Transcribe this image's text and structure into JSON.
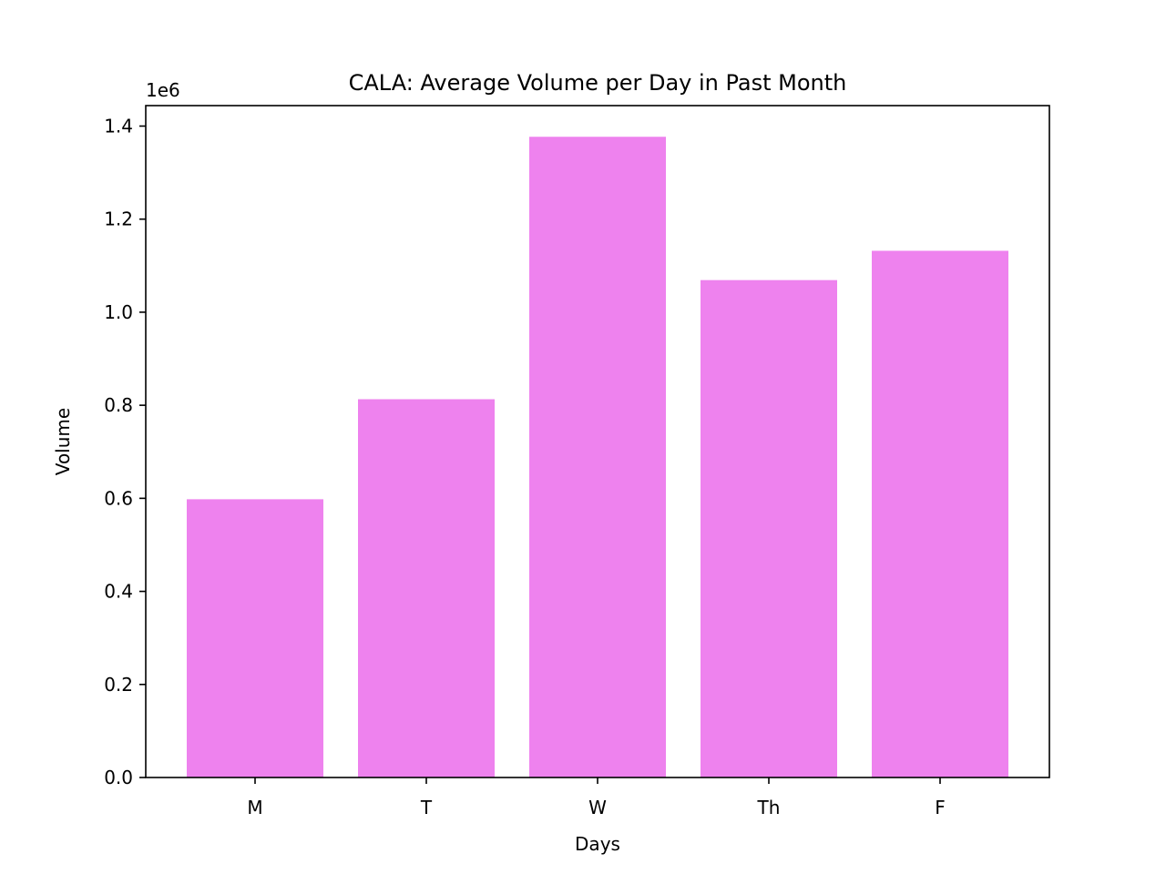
{
  "chart_data": {
    "type": "bar",
    "title": "CALA: Average Volume per Day in Past Month",
    "xlabel": "Days",
    "ylabel": "Volume",
    "offset_label": "1e6",
    "categories": [
      "M",
      "T",
      "W",
      "Th",
      "F"
    ],
    "values": [
      598000,
      813000,
      1377000,
      1069000,
      1132000
    ],
    "ylim": [
      0,
      1444000
    ],
    "yticks": [
      0,
      200000,
      400000,
      600000,
      800000,
      1000000,
      1200000,
      1400000
    ],
    "ytick_labels": [
      "0.0",
      "0.2",
      "0.4",
      "0.6",
      "0.8",
      "1.0",
      "1.2",
      "1.4"
    ],
    "grid": false,
    "bar_color": "#ee82ee"
  }
}
